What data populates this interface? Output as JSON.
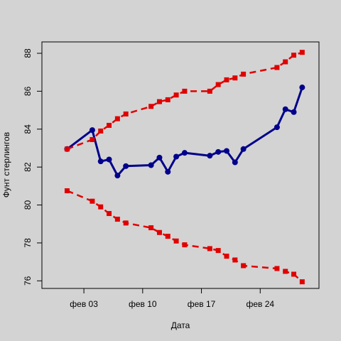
{
  "chart_data": {
    "type": "line",
    "xlabel": "Дата",
    "ylabel": "Фунт стерлингов",
    "xlim": [
      "2012-01-29",
      "2012-03-02"
    ],
    "ylim": [
      75.6,
      88.6
    ],
    "x_ticks": [
      {
        "date": "2012-02-03",
        "label": "фев 03"
      },
      {
        "date": "2012-02-10",
        "label": "фев 10"
      },
      {
        "date": "2012-02-17",
        "label": "фев 17"
      },
      {
        "date": "2012-02-24",
        "label": "фев 24"
      }
    ],
    "y_ticks": [
      76,
      78,
      80,
      82,
      84,
      86,
      88
    ],
    "grid": false,
    "legend": "none",
    "series": [
      {
        "color": "#00008b",
        "line": "solid",
        "marker": "circle",
        "points": [
          [
            "2012-02-01",
            82.95
          ],
          [
            "2012-02-04",
            83.95
          ],
          [
            "2012-02-05",
            82.3
          ],
          [
            "2012-02-06",
            82.4
          ],
          [
            "2012-02-07",
            81.55
          ],
          [
            "2012-02-08",
            82.05
          ],
          [
            "2012-02-11",
            82.1
          ],
          [
            "2012-02-12",
            82.5
          ],
          [
            "2012-02-13",
            81.75
          ],
          [
            "2012-02-14",
            82.55
          ],
          [
            "2012-02-15",
            82.75
          ],
          [
            "2012-02-18",
            82.6
          ],
          [
            "2012-02-19",
            82.8
          ],
          [
            "2012-02-20",
            82.85
          ],
          [
            "2012-02-21",
            82.25
          ],
          [
            "2012-02-22",
            82.95
          ],
          [
            "2012-02-26",
            84.1
          ],
          [
            "2012-02-27",
            85.05
          ],
          [
            "2012-02-28",
            84.9
          ],
          [
            "2012-02-29",
            86.2
          ]
        ]
      },
      {
        "color": "#e00000",
        "line": "dashed",
        "marker": "square",
        "points": [
          [
            "2012-02-01",
            82.95
          ],
          [
            "2012-02-04",
            83.45
          ],
          [
            "2012-02-05",
            83.9
          ],
          [
            "2012-02-06",
            84.2
          ],
          [
            "2012-02-07",
            84.55
          ],
          [
            "2012-02-08",
            84.8
          ],
          [
            "2012-02-11",
            85.2
          ],
          [
            "2012-02-12",
            85.45
          ],
          [
            "2012-02-13",
            85.55
          ],
          [
            "2012-02-14",
            85.8
          ],
          [
            "2012-02-15",
            86.0
          ],
          [
            "2012-02-18",
            86.0
          ],
          [
            "2012-02-19",
            86.35
          ],
          [
            "2012-02-20",
            86.6
          ],
          [
            "2012-02-21",
            86.7
          ],
          [
            "2012-02-22",
            86.9
          ],
          [
            "2012-02-26",
            87.25
          ],
          [
            "2012-02-27",
            87.55
          ],
          [
            "2012-02-28",
            87.9
          ],
          [
            "2012-02-29",
            88.05
          ]
        ]
      },
      {
        "color": "#e00000",
        "line": "dashed",
        "marker": "square",
        "points": [
          [
            "2012-02-01",
            80.75
          ],
          [
            "2012-02-04",
            80.2
          ],
          [
            "2012-02-05",
            79.9
          ],
          [
            "2012-02-06",
            79.55
          ],
          [
            "2012-02-07",
            79.25
          ],
          [
            "2012-02-08",
            79.05
          ],
          [
            "2012-02-11",
            78.8
          ],
          [
            "2012-02-12",
            78.55
          ],
          [
            "2012-02-13",
            78.35
          ],
          [
            "2012-02-14",
            78.1
          ],
          [
            "2012-02-15",
            77.9
          ],
          [
            "2012-02-18",
            77.7
          ],
          [
            "2012-02-19",
            77.6
          ],
          [
            "2012-02-20",
            77.3
          ],
          [
            "2012-02-21",
            77.1
          ],
          [
            "2012-02-22",
            76.8
          ],
          [
            "2012-02-26",
            76.65
          ],
          [
            "2012-02-27",
            76.5
          ],
          [
            "2012-02-28",
            76.35
          ],
          [
            "2012-02-29",
            75.95
          ]
        ]
      }
    ]
  }
}
